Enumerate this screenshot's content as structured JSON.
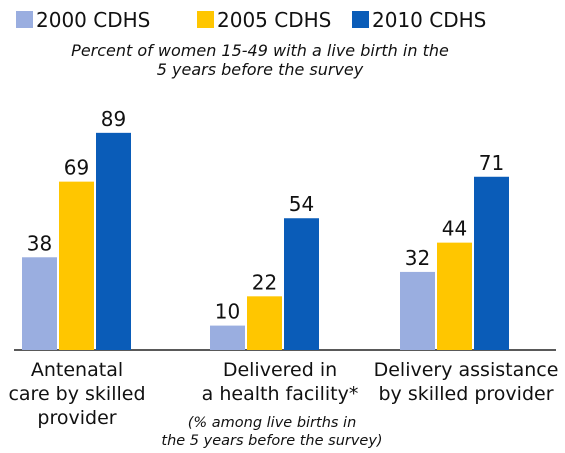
{
  "chart_data": {
    "type": "bar",
    "subtitle": "Percent of women 15-49 with a live birth in the\n5 years before the survey",
    "categories": [
      "Antenatal\ncare by skilled\nprovider",
      "Delivered in\na health facility*",
      "Delivery assistance\nby skilled provider"
    ],
    "annotation": "(% among live births in\nthe 5 years before the survey)",
    "series": [
      {
        "name": "2000 CDHS",
        "color": "#9aaee0",
        "values": [
          38,
          10,
          32
        ]
      },
      {
        "name": "2005 CDHS",
        "color": "#ffc600",
        "values": [
          69,
          22,
          44
        ]
      },
      {
        "name": "2010 CDHS",
        "color": "#0a5cb8",
        "values": [
          89,
          54,
          71
        ]
      }
    ],
    "ylim": [
      0,
      100
    ]
  }
}
